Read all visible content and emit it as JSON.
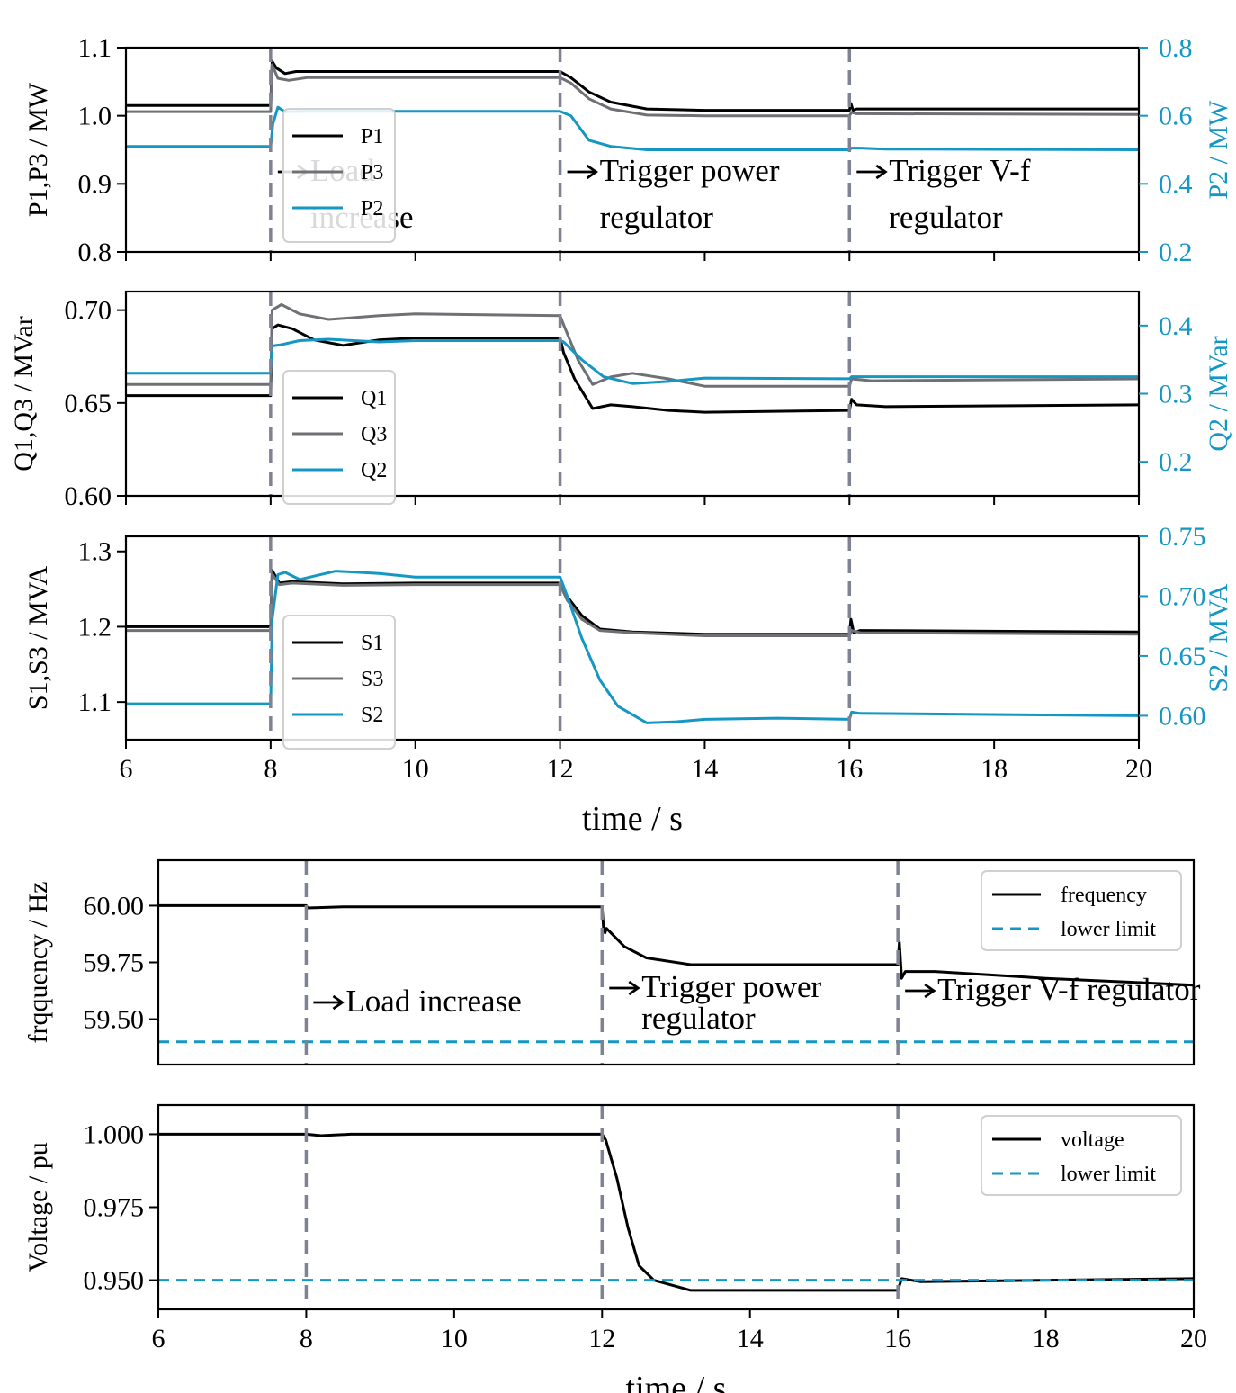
{
  "colors": {
    "black": "#000000",
    "gray": "#6e7074",
    "blue": "#1597c4",
    "event_line": "#7e8292"
  },
  "chart_data": [
    {
      "id": "P",
      "type": "line",
      "xlim": [
        6,
        20
      ],
      "ylim": [
        0.8,
        1.1
      ],
      "ylim_right": [
        0.2,
        0.8
      ],
      "ylabel": "P1,P3 / MW",
      "ylabel_right": "P2 / MW",
      "yticks": [
        "0.8",
        "0.9",
        "1.0",
        "1.1"
      ],
      "yticks_right": [
        "0.2",
        "0.4",
        "0.6",
        "0.8"
      ],
      "events": [
        8,
        12,
        16
      ],
      "annotations": [
        {
          "x": 8,
          "lines": [
            "Load",
            "increase"
          ]
        },
        {
          "x": 12,
          "lines": [
            "Trigger power",
            "regulator"
          ]
        },
        {
          "x": 16,
          "lines": [
            "Trigger V-f",
            "regulator"
          ]
        }
      ],
      "legend_position": "center-left",
      "series": [
        {
          "name": "P1",
          "axis": "left",
          "color": "black",
          "points": [
            [
              6,
              1.015
            ],
            [
              8,
              1.015
            ],
            [
              8.02,
              1.08
            ],
            [
              8.08,
              1.07
            ],
            [
              8.2,
              1.062
            ],
            [
              8.35,
              1.065
            ],
            [
              9,
              1.065
            ],
            [
              12,
              1.065
            ],
            [
              12.15,
              1.056
            ],
            [
              12.4,
              1.035
            ],
            [
              12.7,
              1.02
            ],
            [
              13.2,
              1.01
            ],
            [
              14,
              1.008
            ],
            [
              16,
              1.008
            ],
            [
              16.02,
              1.018
            ],
            [
              16.05,
              1.008
            ],
            [
              16.1,
              1.01
            ],
            [
              20,
              1.01
            ]
          ]
        },
        {
          "name": "P3",
          "axis": "left",
          "color": "gray",
          "points": [
            [
              6,
              1.006
            ],
            [
              8,
              1.006
            ],
            [
              8.02,
              1.075
            ],
            [
              8.1,
              1.055
            ],
            [
              8.25,
              1.052
            ],
            [
              8.5,
              1.056
            ],
            [
              9,
              1.056
            ],
            [
              12,
              1.056
            ],
            [
              12.15,
              1.048
            ],
            [
              12.4,
              1.025
            ],
            [
              12.7,
              1.01
            ],
            [
              13.2,
              1.001
            ],
            [
              14,
              1.0
            ],
            [
              16,
              1.0
            ],
            [
              16.03,
              1.005
            ],
            [
              16.1,
              1.003
            ],
            [
              20,
              1.002
            ]
          ]
        },
        {
          "name": "P2",
          "axis": "right",
          "color": "blue",
          "points": [
            [
              6,
              0.51
            ],
            [
              8,
              0.51
            ],
            [
              8.03,
              0.575
            ],
            [
              8.1,
              0.625
            ],
            [
              8.2,
              0.612
            ],
            [
              8.5,
              0.613
            ],
            [
              9,
              0.613
            ],
            [
              12,
              0.613
            ],
            [
              12.15,
              0.6
            ],
            [
              12.4,
              0.528
            ],
            [
              12.7,
              0.51
            ],
            [
              13.2,
              0.5
            ],
            [
              14,
              0.5
            ],
            [
              16,
              0.5
            ],
            [
              16.03,
              0.505
            ],
            [
              16.15,
              0.505
            ],
            [
              16.5,
              0.502
            ],
            [
              20,
              0.5
            ]
          ]
        }
      ]
    },
    {
      "id": "Q",
      "type": "line",
      "xlim": [
        6,
        20
      ],
      "ylim": [
        0.6,
        0.71
      ],
      "ylim_right": [
        0.15,
        0.45
      ],
      "ylabel": "Q1,Q3 / MVar",
      "ylabel_right": "Q2 / MVar",
      "yticks": [
        "0.60",
        "0.65",
        "0.70"
      ],
      "yticks_right": [
        "0.2",
        "0.3",
        "0.4"
      ],
      "events": [
        8,
        12,
        16
      ],
      "annotations": [],
      "legend_position": "center-left",
      "series": [
        {
          "name": "Q1",
          "axis": "left",
          "color": "black",
          "points": [
            [
              6,
              0.654
            ],
            [
              8,
              0.654
            ],
            [
              8.02,
              0.69
            ],
            [
              8.1,
              0.692
            ],
            [
              8.3,
              0.69
            ],
            [
              8.6,
              0.684
            ],
            [
              9,
              0.681
            ],
            [
              9.5,
              0.684
            ],
            [
              10,
              0.685
            ],
            [
              12,
              0.685
            ],
            [
              12.05,
              0.677
            ],
            [
              12.2,
              0.663
            ],
            [
              12.45,
              0.647
            ],
            [
              12.7,
              0.649
            ],
            [
              13,
              0.648
            ],
            [
              13.5,
              0.646
            ],
            [
              14,
              0.645
            ],
            [
              16,
              0.646
            ],
            [
              16.03,
              0.652
            ],
            [
              16.1,
              0.649
            ],
            [
              16.5,
              0.648
            ],
            [
              20,
              0.649
            ]
          ]
        },
        {
          "name": "Q3",
          "axis": "left",
          "color": "gray",
          "points": [
            [
              6,
              0.66
            ],
            [
              8,
              0.66
            ],
            [
              8.02,
              0.7
            ],
            [
              8.15,
              0.703
            ],
            [
              8.4,
              0.698
            ],
            [
              8.8,
              0.695
            ],
            [
              9.5,
              0.697
            ],
            [
              10,
              0.698
            ],
            [
              12,
              0.697
            ],
            [
              12.05,
              0.692
            ],
            [
              12.25,
              0.673
            ],
            [
              12.45,
              0.66
            ],
            [
              12.7,
              0.664
            ],
            [
              13,
              0.666
            ],
            [
              13.5,
              0.663
            ],
            [
              14,
              0.659
            ],
            [
              16,
              0.659
            ],
            [
              16.03,
              0.663
            ],
            [
              16.3,
              0.662
            ],
            [
              20,
              0.663
            ]
          ]
        },
        {
          "name": "Q2",
          "axis": "right",
          "color": "blue",
          "points": [
            [
              6,
              0.33
            ],
            [
              8,
              0.33
            ],
            [
              8.02,
              0.37
            ],
            [
              8.15,
              0.372
            ],
            [
              8.4,
              0.378
            ],
            [
              8.8,
              0.38
            ],
            [
              9.5,
              0.376
            ],
            [
              10,
              0.378
            ],
            [
              12,
              0.378
            ],
            [
              12.05,
              0.376
            ],
            [
              12.3,
              0.35
            ],
            [
              12.6,
              0.325
            ],
            [
              13,
              0.315
            ],
            [
              13.5,
              0.318
            ],
            [
              14,
              0.323
            ],
            [
              16,
              0.322
            ],
            [
              16.03,
              0.325
            ],
            [
              16.3,
              0.325
            ],
            [
              20,
              0.325
            ]
          ]
        }
      ]
    },
    {
      "id": "S",
      "type": "line",
      "xlim": [
        6,
        20
      ],
      "ylim": [
        1.05,
        1.32
      ],
      "ylim_right": [
        0.58,
        0.75
      ],
      "ylabel": "S1,S3 / MVA",
      "ylabel_right": "S2 / MVA",
      "yticks": [
        "1.1",
        "1.2",
        "1.3"
      ],
      "yticks_right": [
        "0.60",
        "0.65",
        "0.70",
        "0.75"
      ],
      "events": [
        8,
        12,
        16
      ],
      "annotations": [],
      "legend_position": "center-left",
      "series": [
        {
          "name": "S1",
          "axis": "left",
          "color": "black",
          "points": [
            [
              6,
              1.2
            ],
            [
              8,
              1.2
            ],
            [
              8.02,
              1.275
            ],
            [
              8.12,
              1.258
            ],
            [
              8.3,
              1.26
            ],
            [
              9,
              1.257
            ],
            [
              10,
              1.258
            ],
            [
              12,
              1.258
            ],
            [
              12.1,
              1.24
            ],
            [
              12.3,
              1.215
            ],
            [
              12.55,
              1.197
            ],
            [
              13,
              1.193
            ],
            [
              14,
              1.19
            ],
            [
              16,
              1.19
            ],
            [
              16.02,
              1.21
            ],
            [
              16.06,
              1.192
            ],
            [
              16.15,
              1.195
            ],
            [
              20,
              1.193
            ]
          ]
        },
        {
          "name": "S3",
          "axis": "left",
          "color": "gray",
          "points": [
            [
              6,
              1.195
            ],
            [
              8,
              1.195
            ],
            [
              8.02,
              1.27
            ],
            [
              8.12,
              1.256
            ],
            [
              8.3,
              1.258
            ],
            [
              9,
              1.255
            ],
            [
              10,
              1.256
            ],
            [
              12,
              1.256
            ],
            [
              12.1,
              1.235
            ],
            [
              12.3,
              1.21
            ],
            [
              12.55,
              1.195
            ],
            [
              13,
              1.192
            ],
            [
              14,
              1.188
            ],
            [
              16,
              1.188
            ],
            [
              16.03,
              1.195
            ],
            [
              16.15,
              1.192
            ],
            [
              20,
              1.19
            ]
          ]
        },
        {
          "name": "S2",
          "axis": "right",
          "color": "blue",
          "points": [
            [
              6,
              0.61
            ],
            [
              8,
              0.61
            ],
            [
              8.02,
              0.68
            ],
            [
              8.1,
              0.718
            ],
            [
              8.2,
              0.72
            ],
            [
              8.4,
              0.714
            ],
            [
              8.9,
              0.721
            ],
            [
              9.5,
              0.719
            ],
            [
              10,
              0.716
            ],
            [
              12,
              0.716
            ],
            [
              12.1,
              0.7
            ],
            [
              12.3,
              0.665
            ],
            [
              12.55,
              0.63
            ],
            [
              12.8,
              0.608
            ],
            [
              13.2,
              0.594
            ],
            [
              13.6,
              0.595
            ],
            [
              14,
              0.597
            ],
            [
              15,
              0.598
            ],
            [
              16,
              0.597
            ],
            [
              16.03,
              0.603
            ],
            [
              16.15,
              0.602
            ],
            [
              20,
              0.6
            ]
          ]
        }
      ]
    },
    {
      "id": "F",
      "type": "line",
      "xlim": [
        6,
        20
      ],
      "ylim": [
        59.3,
        60.2
      ],
      "ylabel": "frqquency / Hz",
      "yticks": [
        "59.50",
        "59.75",
        "60.00"
      ],
      "events": [
        8,
        12,
        16
      ],
      "annotations": [
        {
          "x": 8,
          "lines": [
            "Load increase"
          ]
        },
        {
          "x": 12,
          "lines": [
            "Trigger power",
            "regulator"
          ]
        },
        {
          "x": 16,
          "lines": [
            "Trigger V-f regulator"
          ]
        }
      ],
      "legend_position": "top-right",
      "series": [
        {
          "name": "frequency",
          "axis": "left",
          "color": "black",
          "points": [
            [
              6,
              60.0
            ],
            [
              8,
              60.0
            ],
            [
              8.02,
              59.99
            ],
            [
              8.5,
              59.995
            ],
            [
              12,
              59.995
            ],
            [
              12.02,
              59.9
            ],
            [
              12.04,
              59.88
            ],
            [
              12.06,
              59.9
            ],
            [
              12.3,
              59.82
            ],
            [
              12.6,
              59.77
            ],
            [
              13.2,
              59.74
            ],
            [
              14,
              59.74
            ],
            [
              16,
              59.74
            ],
            [
              16.02,
              59.84
            ],
            [
              16.05,
              59.68
            ],
            [
              16.1,
              59.71
            ],
            [
              16.5,
              59.71
            ],
            [
              18,
              59.68
            ],
            [
              20,
              59.65
            ]
          ]
        },
        {
          "name": "lower limit",
          "axis": "left",
          "color": "blue",
          "dashed": true,
          "points": [
            [
              6,
              59.4
            ],
            [
              20,
              59.4
            ]
          ]
        }
      ]
    },
    {
      "id": "V",
      "type": "line",
      "xlim": [
        6,
        20
      ],
      "ylim": [
        0.94,
        1.01
      ],
      "ylabel": "Voltage / pu",
      "yticks": [
        "0.950",
        "0.975",
        "1.000"
      ],
      "xticks": [
        "6",
        "8",
        "10",
        "12",
        "14",
        "16",
        "18",
        "20"
      ],
      "xlabel": "time / s",
      "events": [
        8,
        12,
        16
      ],
      "annotations": [],
      "legend_position": "top-right",
      "series": [
        {
          "name": "voltage",
          "axis": "left",
          "color": "black",
          "points": [
            [
              6,
              1.0
            ],
            [
              8,
              1.0
            ],
            [
              8.2,
              0.9995
            ],
            [
              8.6,
              1.0
            ],
            [
              12,
              1.0
            ],
            [
              12.05,
              0.998
            ],
            [
              12.2,
              0.985
            ],
            [
              12.35,
              0.968
            ],
            [
              12.5,
              0.955
            ],
            [
              12.7,
              0.95
            ],
            [
              13.2,
              0.9465
            ],
            [
              14,
              0.9465
            ],
            [
              16,
              0.9465
            ],
            [
              16.05,
              0.9505
            ],
            [
              16.3,
              0.9495
            ],
            [
              20,
              0.9505
            ]
          ]
        },
        {
          "name": "lower limit",
          "axis": "left",
          "color": "blue",
          "dashed": true,
          "points": [
            [
              6,
              0.95
            ],
            [
              20,
              0.95
            ]
          ]
        }
      ]
    }
  ],
  "shared_axes": [
    {
      "panels": [
        "P",
        "Q",
        "S"
      ],
      "xticks": [
        "6",
        "8",
        "10",
        "12",
        "14",
        "16",
        "18",
        "20"
      ],
      "xlabel": "time / s"
    }
  ]
}
